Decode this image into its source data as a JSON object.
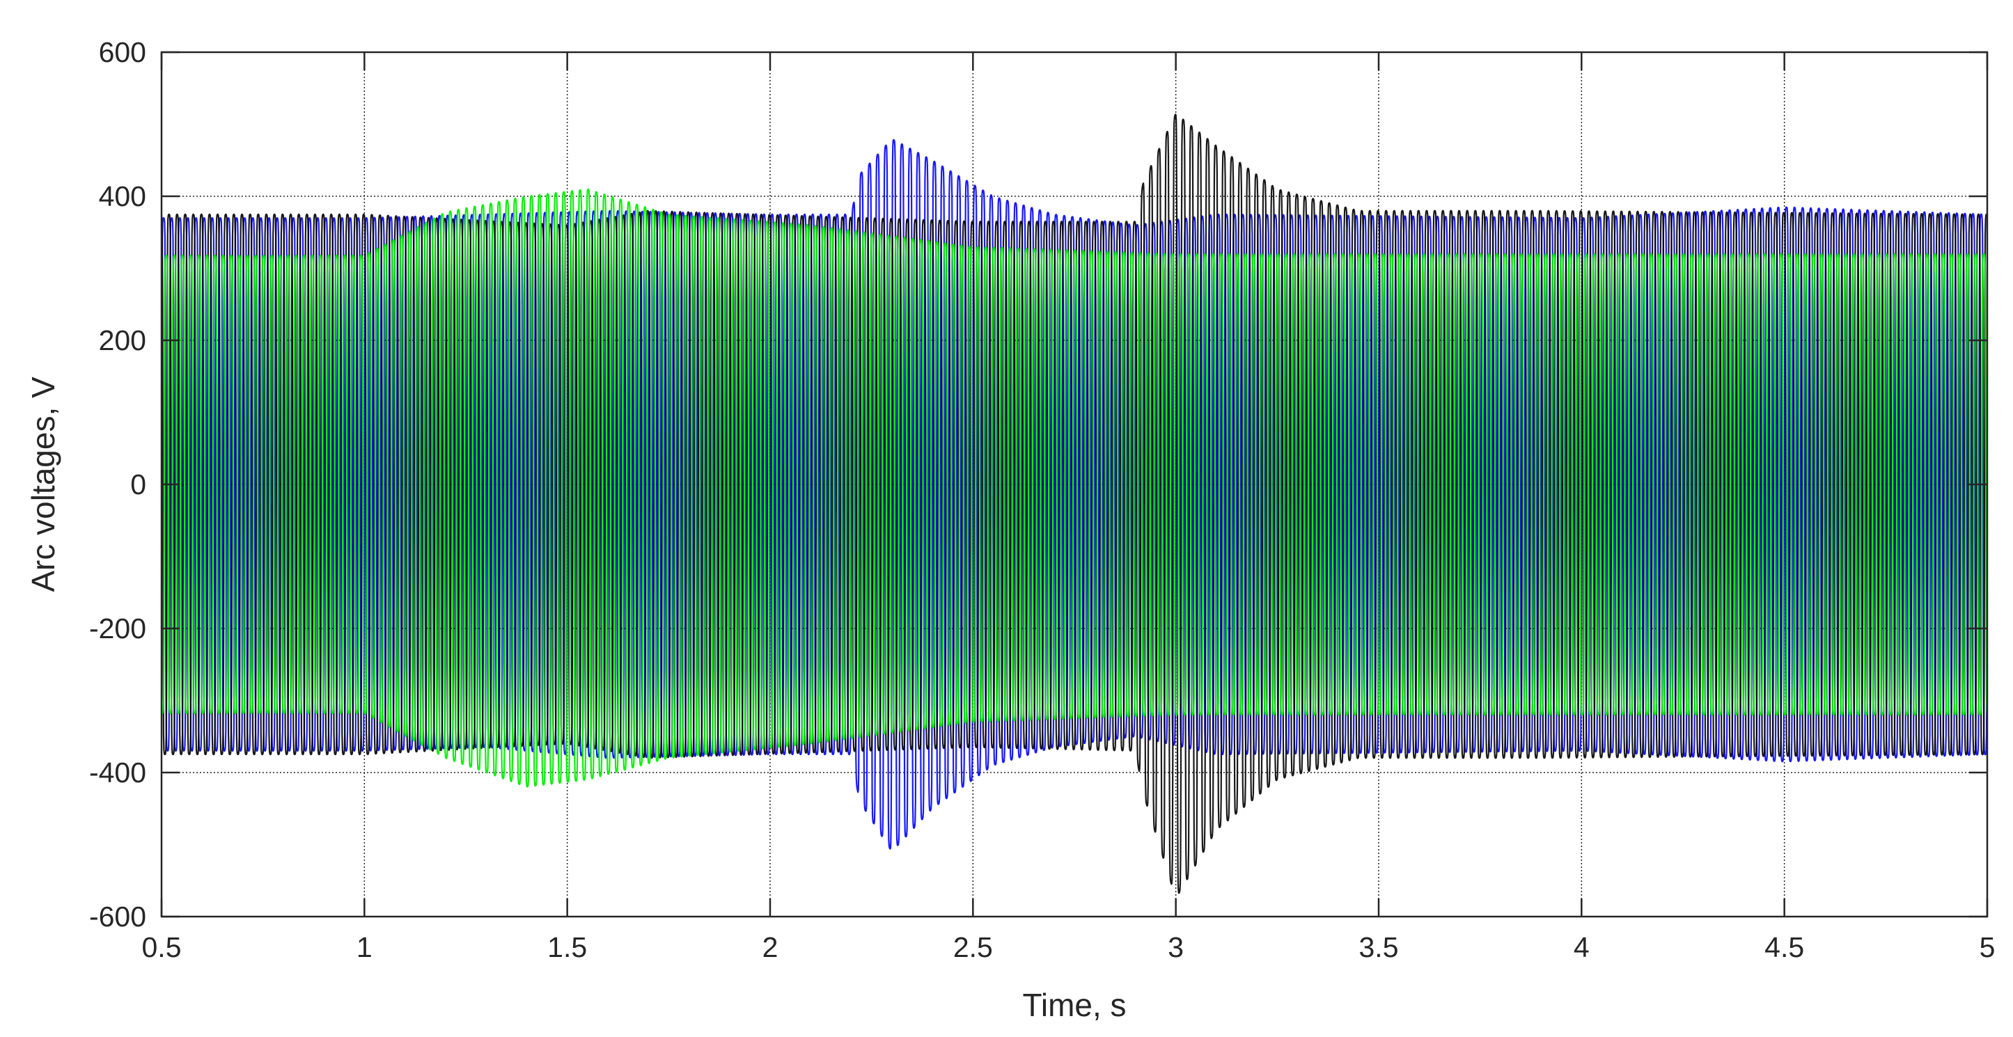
{
  "chart_data": {
    "type": "line",
    "xlabel": "Time, s",
    "ylabel": "Arc voltages, V",
    "xlim": [
      0.5,
      5
    ],
    "ylim": [
      -600,
      600
    ],
    "x_ticks": [
      "0.5",
      "1",
      "1.5",
      "2",
      "2.5",
      "3",
      "3.5",
      "4",
      "4.5",
      "5"
    ],
    "y_ticks": [
      "600",
      "400",
      "200",
      "0",
      "-200",
      "-400",
      "-600"
    ],
    "grid": "dotted",
    "legend": "none",
    "signal_frequency_hz": 50,
    "series": [
      {
        "color": "#0000ff",
        "envelope": [
          {
            "t": 0.5,
            "pos": 370,
            "neg": -370
          },
          {
            "t": 1.0,
            "pos": 370,
            "neg": -370
          },
          {
            "t": 1.3,
            "pos": 375,
            "neg": -365
          },
          {
            "t": 1.6,
            "pos": 380,
            "neg": -380
          },
          {
            "t": 2.0,
            "pos": 375,
            "neg": -375
          },
          {
            "t": 2.2,
            "pos": 375,
            "neg": -375
          },
          {
            "t": 2.22,
            "pos": 430,
            "neg": -440
          },
          {
            "t": 2.3,
            "pos": 480,
            "neg": -510
          },
          {
            "t": 2.4,
            "pos": 450,
            "neg": -450
          },
          {
            "t": 2.55,
            "pos": 400,
            "neg": -390
          },
          {
            "t": 2.7,
            "pos": 375,
            "neg": -365
          },
          {
            "t": 2.9,
            "pos": 360,
            "neg": -350
          },
          {
            "t": 3.1,
            "pos": 375,
            "neg": -375
          },
          {
            "t": 4.0,
            "pos": 370,
            "neg": -370
          },
          {
            "t": 4.5,
            "pos": 385,
            "neg": -385
          },
          {
            "t": 5.0,
            "pos": 375,
            "neg": -375
          }
        ]
      },
      {
        "color": "#000000",
        "envelope": [
          {
            "t": 0.5,
            "pos": 375,
            "neg": -375
          },
          {
            "t": 1.0,
            "pos": 375,
            "neg": -375
          },
          {
            "t": 1.5,
            "pos": 360,
            "neg": -360
          },
          {
            "t": 1.7,
            "pos": 380,
            "neg": -380
          },
          {
            "t": 2.5,
            "pos": 365,
            "neg": -365
          },
          {
            "t": 2.9,
            "pos": 365,
            "neg": -370
          },
          {
            "t": 2.92,
            "pos": 420,
            "neg": -430
          },
          {
            "t": 3.0,
            "pos": 515,
            "neg": -575
          },
          {
            "t": 3.1,
            "pos": 470,
            "neg": -480
          },
          {
            "t": 3.25,
            "pos": 410,
            "neg": -410
          },
          {
            "t": 3.45,
            "pos": 380,
            "neg": -380
          },
          {
            "t": 3.9,
            "pos": 380,
            "neg": -380
          },
          {
            "t": 5.0,
            "pos": 375,
            "neg": -375
          }
        ]
      },
      {
        "color": "#00ee00",
        "envelope": [
          {
            "t": 0.5,
            "pos": 318,
            "neg": -318
          },
          {
            "t": 1.0,
            "pos": 318,
            "neg": -318
          },
          {
            "t": 1.2,
            "pos": 378,
            "neg": -380
          },
          {
            "t": 1.4,
            "pos": 400,
            "neg": -420
          },
          {
            "t": 1.55,
            "pos": 410,
            "neg": -410
          },
          {
            "t": 1.75,
            "pos": 375,
            "neg": -380
          },
          {
            "t": 2.1,
            "pos": 360,
            "neg": -360
          },
          {
            "t": 2.5,
            "pos": 330,
            "neg": -330
          },
          {
            "t": 3.0,
            "pos": 320,
            "neg": -320
          },
          {
            "t": 5.0,
            "pos": 320,
            "neg": -320
          }
        ]
      }
    ]
  }
}
